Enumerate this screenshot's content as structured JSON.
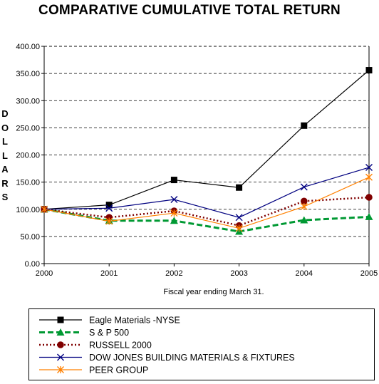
{
  "chart_data": {
    "type": "line",
    "title": "COMPARATIVE CUMULATIVE TOTAL RETURN",
    "ylabel": "DOLLARS",
    "xlabel": "Fiscal year ending March 31.",
    "ylim": [
      0,
      400
    ],
    "y_ticks": [
      "0.00",
      "50.00",
      "100.00",
      "150.00",
      "200.00",
      "250.00",
      "300.00",
      "350.00",
      "400.00"
    ],
    "y_tick_values": [
      0,
      50,
      100,
      150,
      200,
      250,
      300,
      350,
      400
    ],
    "categories": [
      "2000",
      "2001",
      "2002",
      "2003",
      "2004",
      "2005"
    ],
    "grid": "horizontal-dashed",
    "legend_position": "bottom",
    "series": [
      {
        "name": "Eagle Materials -NYSE",
        "values": [
          100,
          108,
          154,
          140,
          254,
          356
        ],
        "color": "#000000",
        "marker": "square",
        "line_style": "solid"
      },
      {
        "name": "S & P 500",
        "values": [
          100,
          79,
          79,
          59,
          80,
          86
        ],
        "color": "#009933",
        "marker": "triangle",
        "line_style": "dashed"
      },
      {
        "name": "RUSSELL 2000",
        "values": [
          100,
          85,
          97,
          70,
          115,
          122
        ],
        "color": "#800000",
        "marker": "circle",
        "line_style": "dotted"
      },
      {
        "name": "DOW JONES BUILDING MATERIALS & FIXTURES",
        "values": [
          100,
          102,
          118,
          85,
          141,
          177
        ],
        "color": "#000080",
        "marker": "x",
        "line_style": "solid"
      },
      {
        "name": "PEER GROUP",
        "values": [
          100,
          78,
          93,
          65,
          105,
          159
        ],
        "color": "#ff8000",
        "marker": "asterisk",
        "line_style": "solid"
      }
    ]
  }
}
